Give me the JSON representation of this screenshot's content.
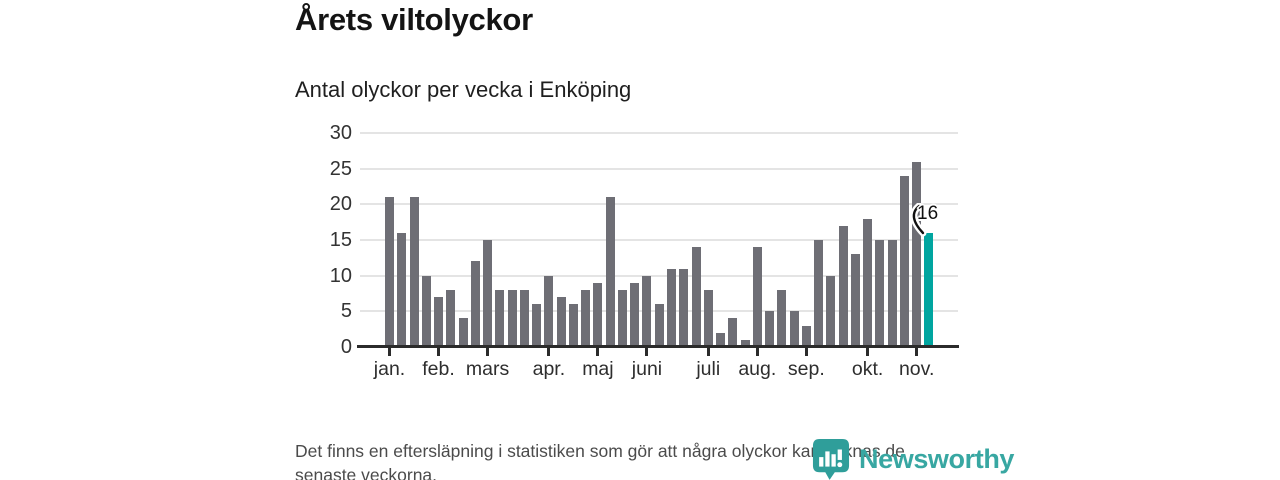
{
  "title": "Årets viltolyckor",
  "subtitle": "Antal olyckor per vecka i Enköping",
  "annotation": {
    "label": "16"
  },
  "footer": {
    "lines": [
      "Det finns en eftersläpning i statistiken som gör att några olyckor kan saknas de",
      "senaste veckorna."
    ]
  },
  "logo": {
    "text": "Newsworthy"
  },
  "colors": {
    "bar": "#6e6e75",
    "highlight": "#00a5a0",
    "grid": "#e4e4e4",
    "axis": "#2b2b2b",
    "logo": "#38a7a2"
  },
  "chart_data": {
    "type": "bar",
    "title": "Årets viltolyckor",
    "subtitle": "Antal olyckor per vecka i Enköping",
    "unit": "olyckor per vecka",
    "values": [
      21,
      16,
      21,
      10,
      7,
      8,
      4,
      12,
      15,
      8,
      8,
      8,
      6,
      10,
      7,
      6,
      8,
      9,
      21,
      8,
      9,
      10,
      6,
      11,
      11,
      14,
      8,
      2,
      4,
      1,
      14,
      5,
      8,
      5,
      3,
      15,
      10,
      17,
      13,
      18,
      15,
      15,
      24,
      26,
      16
    ],
    "highlight_index": 44,
    "highlight_value_label": "16",
    "months": [
      {
        "label": "jan.",
        "index": 0
      },
      {
        "label": "feb.",
        "index": 4
      },
      {
        "label": "mars",
        "index": 8
      },
      {
        "label": "apr.",
        "index": 13
      },
      {
        "label": "maj",
        "index": 17
      },
      {
        "label": "juni",
        "index": 21
      },
      {
        "label": "juli",
        "index": 26
      },
      {
        "label": "aug.",
        "index": 30
      },
      {
        "label": "sep.",
        "index": 34
      },
      {
        "label": "okt.",
        "index": 39
      },
      {
        "label": "nov.",
        "index": 43
      }
    ],
    "ylim": [
      0,
      30
    ],
    "yticks": [
      0,
      5,
      10,
      15,
      20,
      25,
      30
    ],
    "grid": true,
    "legend": "none",
    "xlabel": "",
    "ylabel": ""
  }
}
